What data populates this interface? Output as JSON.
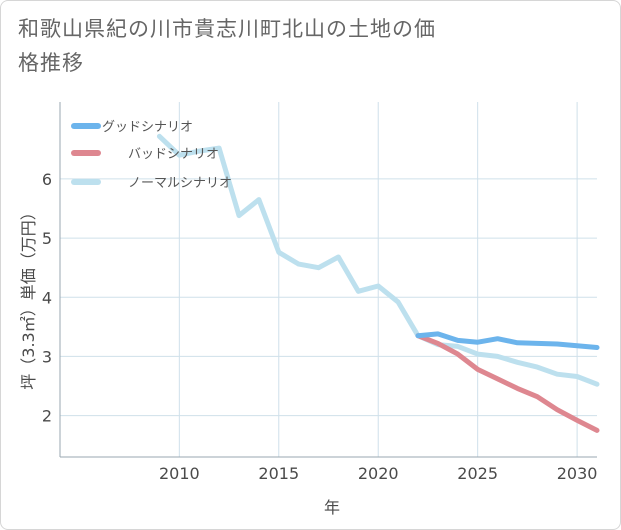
{
  "title": "和歌山県紀の川市貴志川町北山の土地の価格推移",
  "chart_data": {
    "type": "line",
    "xlabel": "年",
    "ylabel": "坪（3.3㎡）単価（万円）",
    "xlim": [
      2004,
      2031
    ],
    "ylim": [
      1.3,
      7.3
    ],
    "xticks": [
      2010,
      2015,
      2020,
      2025,
      2030
    ],
    "yticks": [
      2,
      3,
      4,
      5,
      6
    ],
    "grid": true,
    "legend_position": "top-left",
    "series": [
      {
        "name": "グッドシナリオ",
        "color": "#6cb4ec",
        "x": [
          2022,
          2023,
          2024,
          2025,
          2026,
          2027,
          2028,
          2029,
          2030,
          2031
        ],
        "values": [
          3.35,
          3.38,
          3.27,
          3.24,
          3.3,
          3.23,
          3.22,
          3.21,
          3.18,
          3.15
        ]
      },
      {
        "name": "バッドシナリオ",
        "color": "#de8790",
        "x": [
          2022,
          2023,
          2024,
          2025,
          2026,
          2027,
          2028,
          2029,
          2030,
          2031
        ],
        "values": [
          3.35,
          3.22,
          3.04,
          2.78,
          2.62,
          2.46,
          2.32,
          2.1,
          1.92,
          1.75
        ]
      },
      {
        "name": "ノーマルシナリオ",
        "color": "#bde0ee",
        "x": [
          2009,
          2010,
          2011,
          2012,
          2013,
          2014,
          2015,
          2016,
          2017,
          2018,
          2019,
          2020,
          2021,
          2022,
          2023,
          2024,
          2025,
          2026,
          2027,
          2028,
          2029,
          2030,
          2031
        ],
        "values": [
          6.72,
          6.4,
          6.47,
          6.52,
          5.38,
          5.65,
          4.76,
          4.56,
          4.5,
          4.68,
          4.1,
          4.19,
          3.92,
          3.35,
          3.2,
          3.17,
          3.04,
          3.0,
          2.9,
          2.82,
          2.7,
          2.66,
          2.53
        ]
      }
    ]
  }
}
